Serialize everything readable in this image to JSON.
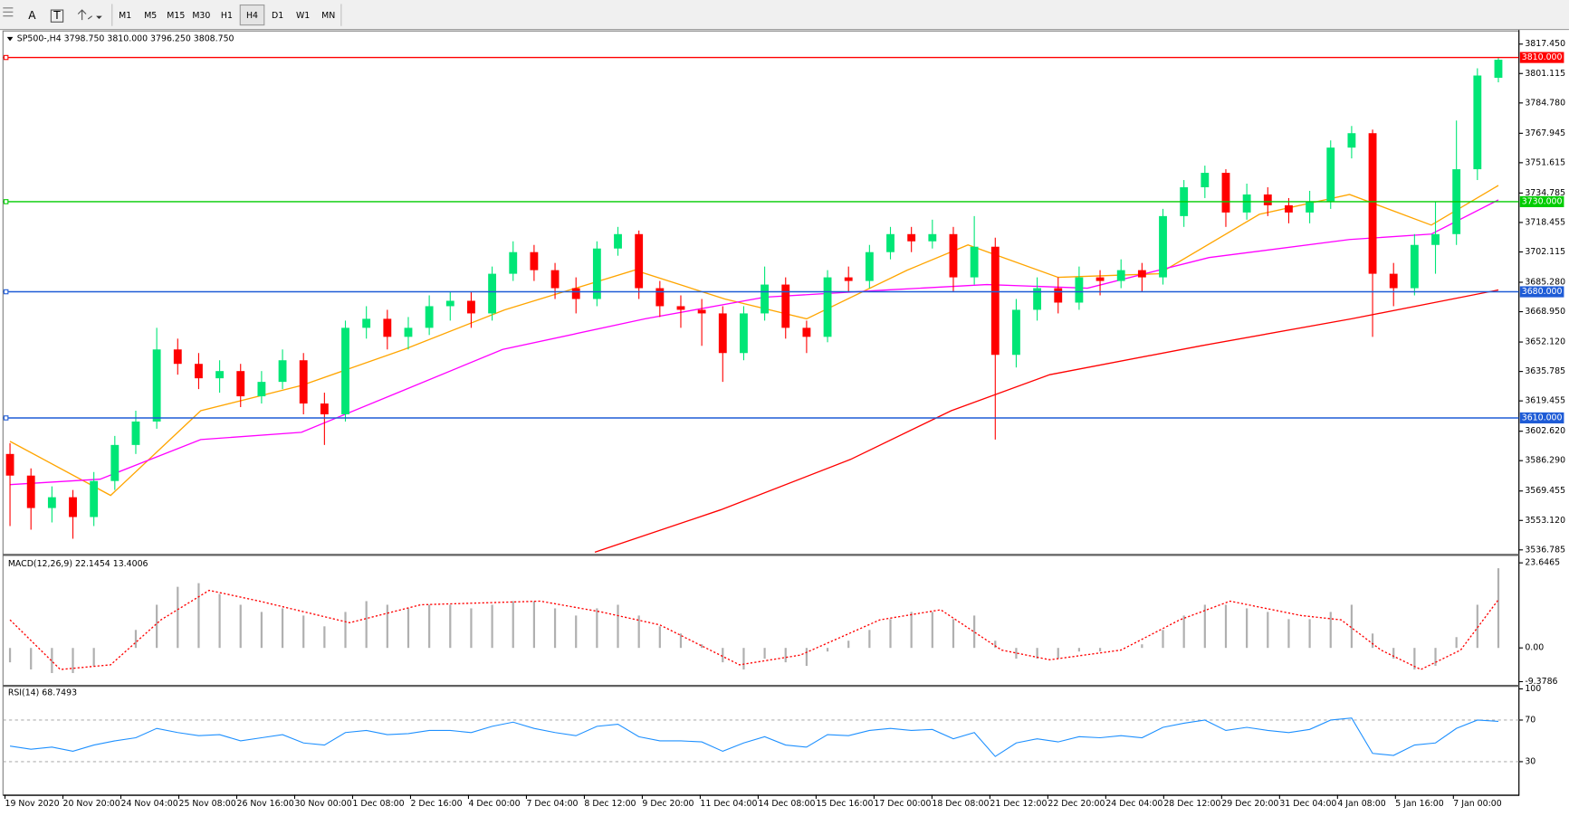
{
  "toolbar": {
    "tools": [
      "A",
      "T"
    ],
    "timeframes": [
      "M1",
      "M5",
      "M15",
      "M30",
      "H1",
      "H4",
      "D1",
      "W1",
      "MN"
    ],
    "active": "H4"
  },
  "time_axis": {
    "labels": [
      "19 Nov 2020",
      "20 Nov 20:00",
      "24 Nov 04:00",
      "25 Nov 08:00",
      "26 Nov 16:00",
      "30 Nov 00:00",
      "1 Dec 08:00",
      "2 Dec 16:00",
      "4 Dec 00:00",
      "7 Dec 04:00",
      "8 Dec 12:00",
      "9 Dec 20:00",
      "11 Dec 04:00",
      "14 Dec 08:00",
      "15 Dec 16:00",
      "17 Dec 00:00",
      "18 Dec 08:00",
      "21 Dec 12:00",
      "22 Dec 20:00",
      "24 Dec 04:00",
      "28 Dec 12:00",
      "29 Dec 20:00",
      "31 Dec 04:00",
      "4 Jan 08:00",
      "5 Jan 16:00",
      "7 Jan 00:00"
    ]
  },
  "chart_data": [
    {
      "type": "candlestick",
      "title": "SP500-,H4  3798.750 3810.000 3796.250 3808.750",
      "up_color": "#00e676",
      "down_color": "#ff0000",
      "open": [
        3590,
        3578,
        3560,
        3566,
        3555,
        3575,
        3595,
        3608,
        3648,
        3640,
        3632,
        3636,
        3622,
        3630,
        3642,
        3618,
        3612,
        3660,
        3665,
        3655,
        3660,
        3672,
        3675,
        3668,
        3690,
        3702,
        3692,
        3682,
        3676,
        3704,
        3712,
        3682,
        3672,
        3670,
        3668,
        3646,
        3668,
        3684,
        3660,
        3655,
        3688,
        3686,
        3702,
        3712,
        3708,
        3712,
        3688,
        3705,
        3645,
        3670,
        3682,
        3674,
        3688,
        3686,
        3692,
        3688,
        3722,
        3738,
        3746,
        3724,
        3734,
        3728,
        3724,
        3730,
        3760,
        3768,
        3690,
        3682,
        3706,
        3712,
        3748,
        3798.75
      ],
      "high": [
        3596,
        3582,
        3572,
        3570,
        3580,
        3600,
        3614,
        3660,
        3654,
        3646,
        3642,
        3640,
        3636,
        3648,
        3646,
        3624,
        3664,
        3672,
        3670,
        3666,
        3678,
        3680,
        3680,
        3694,
        3708,
        3706,
        3696,
        3688,
        3708,
        3716,
        3714,
        3686,
        3678,
        3676,
        3672,
        3672,
        3694,
        3688,
        3664,
        3692,
        3694,
        3706,
        3716,
        3716,
        3720,
        3716,
        3722,
        3710,
        3676,
        3688,
        3688,
        3694,
        3692,
        3698,
        3696,
        3726,
        3742,
        3750,
        3748,
        3740,
        3738,
        3732,
        3736,
        3764,
        3772,
        3770,
        3696,
        3712,
        3730,
        3775,
        3804,
        3810
      ],
      "low": [
        3550,
        3548,
        3552,
        3543,
        3550,
        3570,
        3590,
        3604,
        3634,
        3626,
        3624,
        3616,
        3618,
        3626,
        3612,
        3595,
        3608,
        3654,
        3648,
        3648,
        3656,
        3664,
        3660,
        3664,
        3686,
        3686,
        3676,
        3668,
        3672,
        3700,
        3676,
        3666,
        3660,
        3650,
        3630,
        3642,
        3664,
        3654,
        3646,
        3652,
        3680,
        3682,
        3698,
        3702,
        3704,
        3680,
        3684,
        3598,
        3638,
        3664,
        3668,
        3670,
        3678,
        3682,
        3680,
        3684,
        3716,
        3732,
        3716,
        3720,
        3722,
        3718,
        3718,
        3726,
        3754,
        3655,
        3672,
        3678,
        3690,
        3706,
        3742,
        3796.25
      ],
      "close": [
        3578,
        3560,
        3566,
        3555,
        3575,
        3595,
        3608,
        3648,
        3640,
        3632,
        3636,
        3622,
        3630,
        3642,
        3618,
        3612,
        3660,
        3665,
        3655,
        3660,
        3672,
        3675,
        3668,
        3690,
        3702,
        3692,
        3682,
        3676,
        3704,
        3712,
        3682,
        3672,
        3670,
        3668,
        3646,
        3668,
        3684,
        3660,
        3655,
        3688,
        3686,
        3702,
        3712,
        3708,
        3712,
        3688,
        3705,
        3645,
        3670,
        3682,
        3674,
        3688,
        3686,
        3692,
        3688,
        3722,
        3738,
        3746,
        3724,
        3734,
        3728,
        3724,
        3730,
        3760,
        3768,
        3690,
        3682,
        3706,
        3712,
        3748,
        3800,
        3808.75
      ],
      "ylim": [
        3535.1,
        3823.6
      ],
      "yticks": [
        {
          "value": 3817.45,
          "label": "3817.450"
        },
        3801.115,
        {
          "value": 3784.78,
          "label": "3784.780"
        },
        3767.945,
        3751.615,
        3734.785,
        3718.455,
        3702.115,
        {
          "value": 3685.28,
          "label": "3685.280"
        },
        {
          "value": 3668.95,
          "label": "3668.950"
        },
        {
          "value": 3652.12,
          "label": "3652.120"
        },
        3635.785,
        3619.455,
        {
          "value": 3602.62,
          "label": "3602.620"
        },
        {
          "value": 3586.29,
          "label": "3586.290"
        },
        3569.455,
        {
          "value": 3553.12,
          "label": "3553.120"
        },
        3536.785
      ],
      "series": [
        {
          "color": "#ffa500",
          "x": [
            0,
            4.8,
            9.1,
            13.9,
            18.8,
            23.6,
            29.8,
            34.1,
            38,
            42.8,
            45.7,
            50,
            54.8,
            59.6,
            63.9,
            67.8,
            71
          ],
          "values": [
            3597,
            3567,
            3614,
            3628,
            3648,
            3670,
            3692,
            3676,
            3665,
            3692,
            3706,
            3688,
            3690,
            3723,
            3734,
            3717,
            3739
          ]
        },
        {
          "color": "#ff00ff",
          "x": [
            0,
            4.3,
            9.1,
            13.9,
            18.7,
            23.5,
            30.3,
            36,
            41.8,
            46.6,
            51.4,
            57.2,
            63.9,
            67.8,
            71
          ],
          "values": [
            3573,
            3576,
            3598,
            3602,
            3625,
            3648,
            3665,
            3677,
            3681,
            3684,
            3682,
            3699,
            3709,
            3712,
            3731
          ]
        },
        {
          "color": "#ff0000",
          "x": [
            27.9,
            33.9,
            40.1,
            44.9,
            49.6,
            56.8,
            64,
            71
          ],
          "values": [
            3535.5,
            3559,
            3587,
            3614,
            3634,
            3650,
            3665,
            3681
          ]
        }
      ],
      "levels": [
        {
          "value": 3810,
          "label": "3810.000",
          "color": "#ff0000"
        },
        {
          "value": 3730,
          "label": "3730.000",
          "color": "#00cc00"
        },
        {
          "value": 3680,
          "label": "3680.000",
          "color": "#1e5bd6"
        },
        {
          "value": 3610,
          "label": "3610.000",
          "color": "#1e5bd6"
        }
      ]
    },
    {
      "type": "macd",
      "title": "MACD(12,26,9) 22.1454 13.4006",
      "histogram": {
        "color": "#b0b0b0",
        "values": [
          -4,
          -6,
          -7,
          -7,
          -5,
          0,
          5,
          12,
          17,
          18,
          15,
          12,
          10,
          11,
          9,
          6,
          10,
          13,
          12,
          11,
          12,
          12,
          11,
          12,
          13,
          13,
          11,
          9,
          11,
          12,
          9,
          6,
          4,
          1,
          -4,
          -6,
          -3,
          -4,
          -5,
          -1,
          2,
          5,
          8,
          10,
          10,
          8,
          9,
          2,
          -3,
          -3,
          -3,
          -1,
          -1,
          0,
          1,
          5,
          9,
          12,
          12,
          11,
          10,
          8,
          8,
          10,
          12,
          4,
          -3,
          -6,
          -5,
          3,
          12,
          22.1454
        ]
      },
      "signal": {
        "color": "#ff0000",
        "x": [
          0,
          2.4,
          4.8,
          7.2,
          9.5,
          11.9,
          16.2,
          19.6,
          25.3,
          28.2,
          31,
          34.8,
          37.7,
          41.5,
          44.4,
          47.3,
          49.6,
          53,
          55.8,
          58.2,
          61.6,
          63.5,
          65.4,
          67.3,
          69.2,
          71
        ],
        "values": [
          7.8,
          -6,
          -4.7,
          7.8,
          16,
          13,
          7,
          12,
          13,
          10,
          6.4,
          -4.7,
          -2,
          7.8,
          10.6,
          -0.6,
          -3.3,
          -0.6,
          7.8,
          13,
          9,
          7.8,
          -0.6,
          -6,
          -0.6,
          13.4006
        ]
      },
      "ylim": [
        -10,
        25.3
      ],
      "yticks": [
        23.6465,
        {
          "value": 0,
          "label": "0.00"
        },
        -9.3786
      ]
    },
    {
      "type": "rsi",
      "title": "RSI(14) 68.7493",
      "color": "#1e90ff",
      "values": [
        45,
        42,
        44,
        40,
        46,
        50,
        53,
        62,
        58,
        55,
        56,
        50,
        53,
        56,
        48,
        46,
        58,
        60,
        56,
        57,
        60,
        60,
        58,
        64,
        68,
        62,
        58,
        55,
        64,
        66,
        54,
        50,
        50,
        49,
        40,
        48,
        54,
        46,
        44,
        56,
        55,
        60,
        62,
        60,
        61,
        52,
        58,
        35,
        48,
        52,
        49,
        54,
        53,
        55,
        53,
        63,
        67,
        70,
        60,
        63,
        60,
        58,
        61,
        70,
        72,
        38,
        36,
        46,
        48,
        62,
        70,
        68.7493
      ],
      "ylim": [
        0,
        100
      ],
      "yticks": [
        100,
        70,
        30
      ],
      "levels": [
        70,
        30
      ]
    }
  ]
}
